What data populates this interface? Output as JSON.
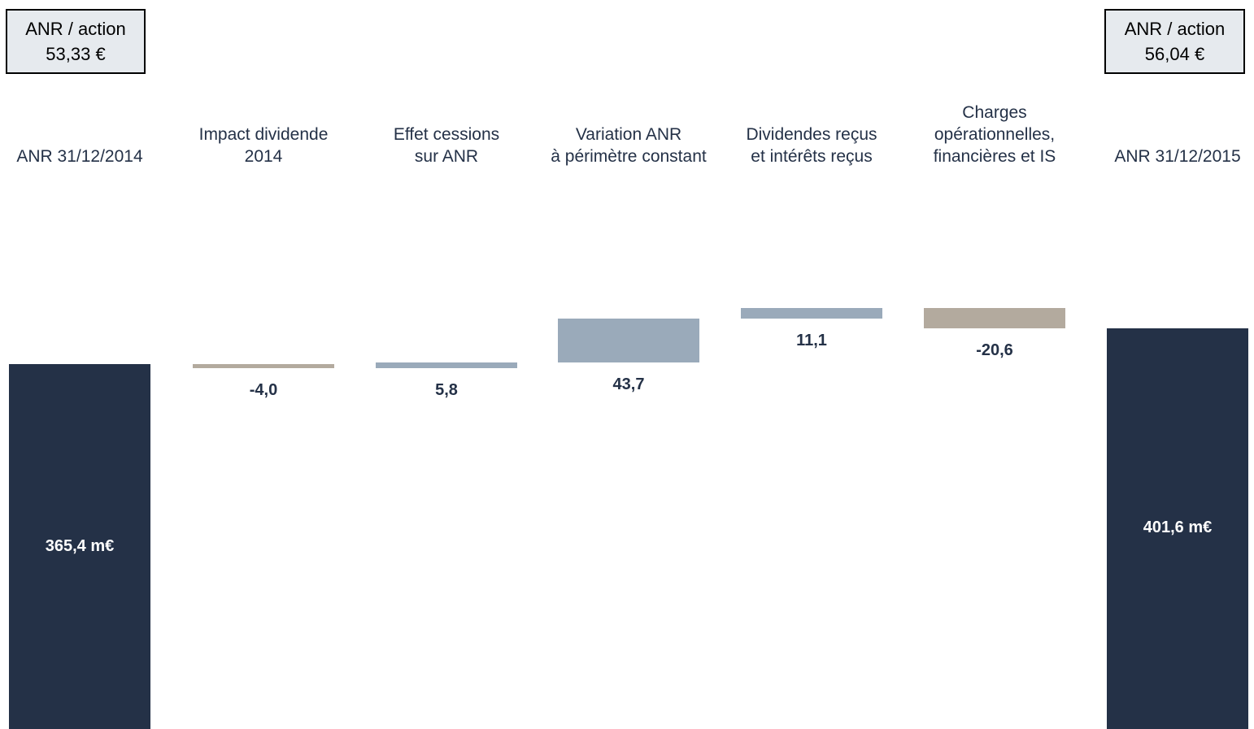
{
  "nav_boxes": {
    "left": {
      "label": "ANR / action",
      "value": "53,33 €"
    },
    "right": {
      "label": "ANR / action",
      "value": "56,04 €"
    }
  },
  "colors": {
    "total": "#243147",
    "increase": "#9aaaba",
    "decrease": "#b3aa9e"
  },
  "chart_data": {
    "type": "bar",
    "subtype": "waterfall",
    "unit": "m€",
    "categories": [
      "ANR 31/12/2014",
      "Impact dividende\n2014",
      "Effet cessions\nsur ANR",
      "Variation ANR\nà périmètre constant",
      "Dividendes reçus\net intérêts reçus",
      "Charges\nopérationnelles,\nfinancières et IS",
      "ANR 31/12/2015"
    ],
    "values": [
      365.4,
      -4.0,
      5.8,
      43.7,
      11.1,
      -20.6,
      401.6
    ],
    "kinds": [
      "total",
      "decrease",
      "increase",
      "increase",
      "increase",
      "decrease",
      "total"
    ],
    "value_labels": [
      "365,4 m€",
      "-4,0",
      "5,8",
      "43,7",
      "11,1",
      "-20,6",
      "401,6 m€"
    ]
  }
}
